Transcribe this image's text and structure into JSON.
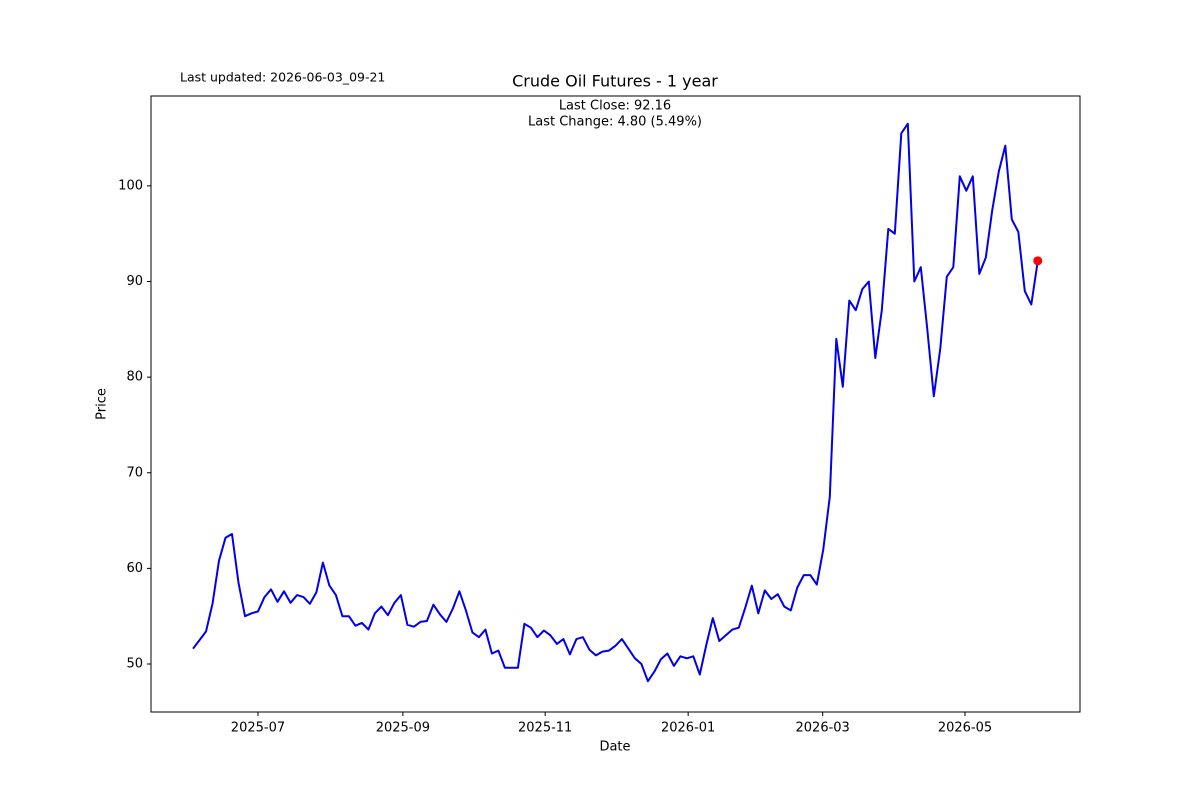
{
  "chart_data": {
    "type": "line",
    "title": "Crude Oil Futures - 1 year",
    "updated": "Last updated: 2026-06-03_09-21",
    "annotations": [
      "Last Close: 92.16",
      "Last Change: 4.80 (5.49%)"
    ],
    "x_label": "Date",
    "y_label": "Price",
    "color": "#0000ee",
    "marker_color": "#ff0000",
    "values": [
      51.6,
      52.5,
      53.4,
      56.3,
      60.8,
      63.2,
      63.6,
      58.5,
      55,
      55.3,
      55.5,
      57,
      57.8,
      56.5,
      57.6,
      56.4,
      57.2,
      57,
      56.3,
      57.5,
      60.6,
      58.2,
      57.2,
      55,
      55,
      54,
      54.3,
      53.6,
      55.3,
      56,
      55.1,
      56.4,
      57.2,
      54.1,
      53.9,
      54.4,
      54.5,
      56.2,
      55.2,
      54.4,
      55.8,
      57.6,
      55.6,
      53.3,
      52.8,
      53.6,
      51.1,
      51.4,
      49.6,
      49.6,
      49.6,
      54.2,
      53.8,
      52.8,
      53.5,
      53,
      52.1,
      52.6,
      51,
      52.6,
      52.8,
      51.5,
      50.9,
      51.3,
      51.4,
      51.9,
      52.6,
      51.6,
      50.6,
      50,
      48.2,
      49.2,
      50.5,
      51.1,
      49.8,
      50.8,
      50.6,
      50.8,
      48.9,
      52,
      54.8,
      52.4,
      53,
      53.6,
      53.8,
      55.9,
      58.2,
      55.3,
      57.7,
      56.8,
      57.3,
      56,
      55.6,
      58,
      59.3,
      59.3,
      58.3,
      62,
      67.5,
      84,
      79,
      88,
      87,
      89.2,
      90,
      82,
      87,
      95.5,
      95,
      105.5,
      106.5,
      90,
      91.5,
      85,
      78,
      83,
      90.5,
      91.5,
      101,
      99.5,
      101,
      90.8,
      92.5,
      97.5,
      101.5,
      104.2,
      96.5,
      95.2,
      89,
      87.6,
      92.16
    ],
    "xlim": [
      -6.46,
      136.5
    ],
    "xticks": [
      {
        "value": 10,
        "label": "2025-07"
      },
      {
        "value": 32.3,
        "label": "2025-09"
      },
      {
        "value": 54.2,
        "label": "2025-11"
      },
      {
        "value": 76.2,
        "label": "2026-01"
      },
      {
        "value": 96.9,
        "label": "2026-03"
      },
      {
        "value": 118.8,
        "label": "2026-05"
      }
    ],
    "ylim": [
      44.98,
      109.4
    ],
    "yticks": [
      50,
      60,
      70,
      80,
      90,
      100
    ]
  }
}
